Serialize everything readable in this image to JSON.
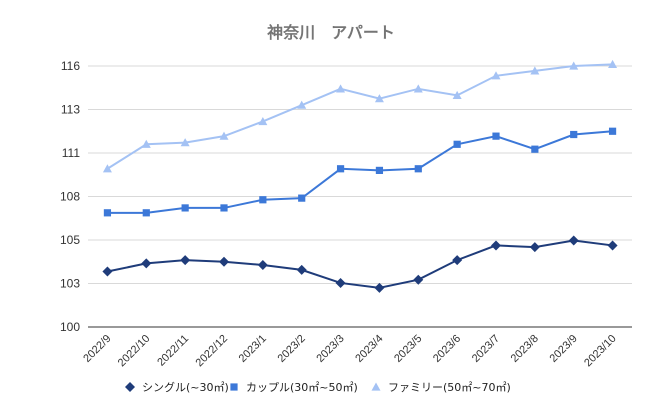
{
  "chart_data": {
    "type": "line",
    "title": "神奈川　アパート",
    "categories": [
      "2022/9",
      "2022/10",
      "2022/11",
      "2022/12",
      "2023/1",
      "2023/2",
      "2023/3",
      "2023/4",
      "2023/5",
      "2023/6",
      "2023/7",
      "2023/8",
      "2023/9",
      "2023/10"
    ],
    "yticks": [
      "100",
      "103",
      "105",
      "108",
      "111",
      "113",
      "116"
    ],
    "ylim": [
      100,
      116
    ],
    "grid": true,
    "legend_position": "bottom",
    "series": [
      {
        "name": "シングル(~30㎡)",
        "color": "#1f3c7a",
        "marker": "diamond",
        "values": [
          103.4,
          103.9,
          104.1,
          104.0,
          103.8,
          103.5,
          102.7,
          102.4,
          102.9,
          104.1,
          105.0,
          104.9,
          105.3,
          105.0
        ]
      },
      {
        "name": "カップル(30㎡~50㎡)",
        "color": "#3c78d8",
        "marker": "square",
        "values": [
          107.0,
          107.0,
          107.3,
          107.3,
          107.8,
          107.9,
          109.7,
          109.6,
          109.7,
          111.2,
          111.7,
          110.9,
          111.8,
          112.0
        ]
      },
      {
        "name": "ファミリー(50㎡~70㎡)",
        "color": "#a4c2f4",
        "marker": "triangle",
        "values": [
          109.7,
          111.2,
          111.3,
          111.7,
          112.6,
          113.6,
          114.6,
          114.0,
          114.6,
          114.2,
          115.4,
          115.7,
          116.0,
          116.1
        ]
      }
    ]
  }
}
